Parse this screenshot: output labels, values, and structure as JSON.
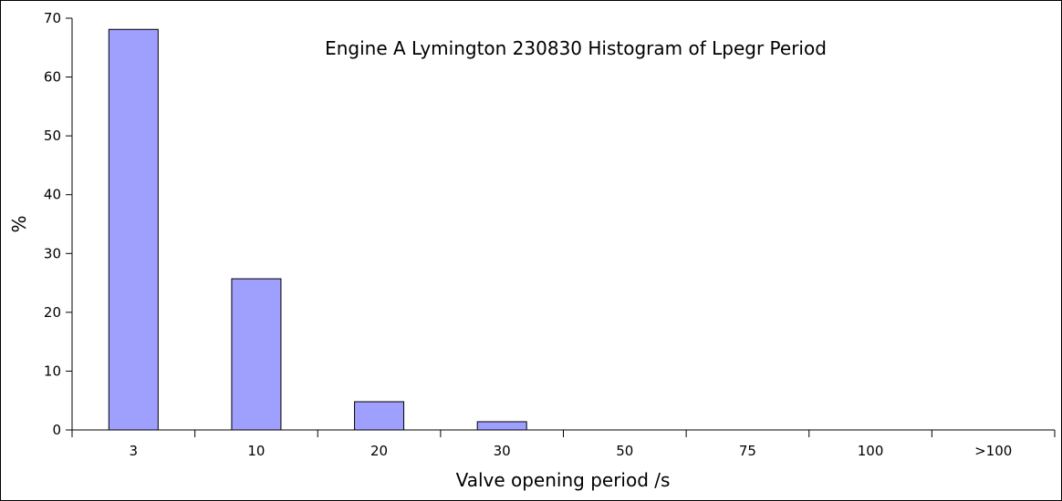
{
  "chart_data": {
    "type": "bar",
    "title": "Engine A Lymington 230830 Histogram of Lpegr Period",
    "xlabel": "Valve opening period /s",
    "ylabel": "%",
    "categories": [
      "3",
      "10",
      "20",
      "30",
      "50",
      "75",
      "100",
      ">100"
    ],
    "values": [
      68.1,
      25.7,
      4.8,
      1.4,
      0,
      0,
      0,
      0
    ],
    "ylim": [
      0,
      70
    ],
    "yticks": [
      0,
      10,
      20,
      30,
      40,
      50,
      60,
      70
    ],
    "grid": false,
    "legend": "none",
    "bar_color": "#9f9ffe",
    "bar_edge_color": "#000000"
  }
}
